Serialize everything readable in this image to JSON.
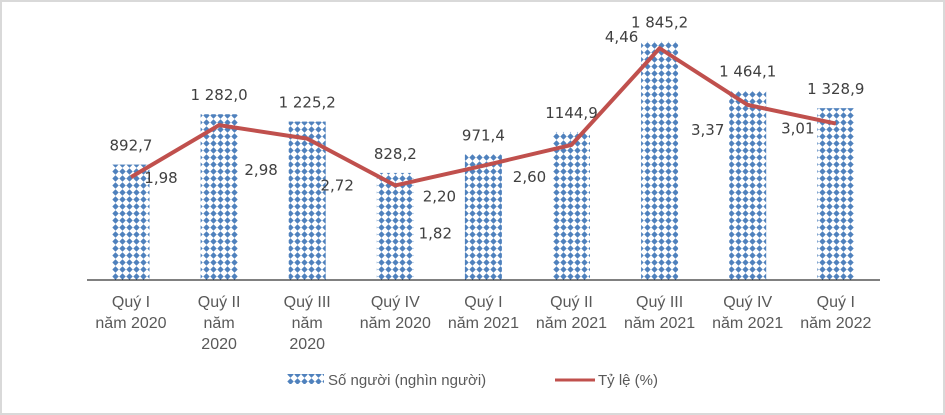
{
  "chart_data": {
    "type": "bar",
    "title": "",
    "xlabel": "",
    "ylabel": "",
    "categories": [
      [
        "Quý I",
        "năm 2020"
      ],
      [
        "Quý II",
        "năm",
        "2020"
      ],
      [
        "Quý III",
        "năm",
        "2020"
      ],
      [
        "Quý IV",
        "năm 2020"
      ],
      [
        "Quý I",
        "năm 2021"
      ],
      [
        "Quý II",
        "năm 2021"
      ],
      [
        "Quý III",
        "năm 2021"
      ],
      [
        "Quý IV",
        "năm 2021"
      ],
      [
        "Quý I",
        "năm 2022"
      ]
    ],
    "series": [
      {
        "name": "Số người (nghìn người)",
        "kind": "bar",
        "values": [
          892.7,
          1282.0,
          1225.2,
          828.2,
          971.4,
          1144.9,
          1845.2,
          1464.1,
          1328.9
        ],
        "labels": [
          "892,7",
          "1 282,0",
          "1 225,2",
          "828,2",
          "971,4",
          "1144,9",
          "1 845,2",
          "1 464,1",
          "1 328,9"
        ],
        "color": "#4f81bd"
      },
      {
        "name": "Tỷ lệ (%)",
        "kind": "line",
        "values": [
          1.98,
          2.98,
          2.72,
          1.82,
          2.2,
          2.6,
          4.46,
          3.37,
          3.01
        ],
        "labels": [
          "1,98",
          "2,98",
          "2,72",
          "1,82",
          "2,20",
          "2,60",
          "4,46",
          "3,37",
          "3,01"
        ],
        "color": "#c0504d"
      }
    ],
    "ylim_bar": [
      0,
      2150
    ],
    "ylim_line": [
      0,
      5.35
    ],
    "grid": false,
    "legend": "bottom"
  }
}
